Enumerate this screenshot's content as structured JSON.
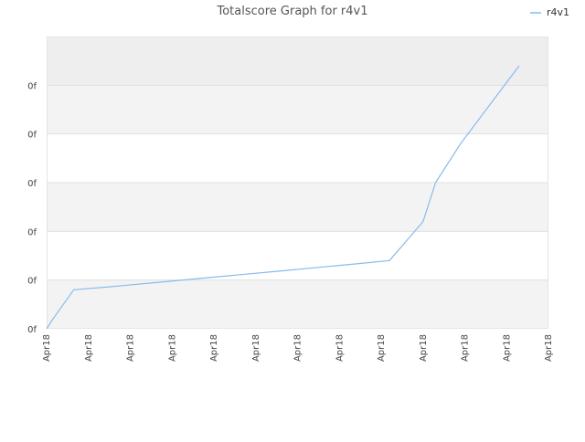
{
  "chart_data": {
    "type": "line",
    "title": "Totalscore Graph for r4v1",
    "legend_position": "top-right",
    "grid": true,
    "xlabel": "",
    "ylabel": "",
    "x_tick_labels": [
      "Apr18",
      "Apr18",
      "Apr18",
      "Apr18",
      "Apr18",
      "Apr18",
      "Apr18",
      "Apr18",
      "Apr18",
      "Apr18",
      "Apr18",
      "Apr18",
      "Apr18"
    ],
    "y_tick_labels": [
      "0f",
      "0f",
      "0f",
      "0f",
      "0f",
      "0f"
    ],
    "ylim": [
      0,
      6
    ],
    "xlim": [
      0,
      12
    ],
    "series": [
      {
        "name": "r4v1",
        "color": "#88bbee",
        "x": [
          0,
          0.15,
          0.65,
          1.5,
          2.5,
          3.5,
          4.5,
          5.5,
          6.5,
          7.5,
          8.2,
          9.0,
          9.3,
          9.9,
          11.3
        ],
        "y": [
          0,
          0.2,
          0.8,
          0.86,
          0.94,
          1.02,
          1.1,
          1.18,
          1.26,
          1.34,
          1.4,
          2.2,
          3.0,
          3.8,
          5.4
        ]
      }
    ]
  }
}
